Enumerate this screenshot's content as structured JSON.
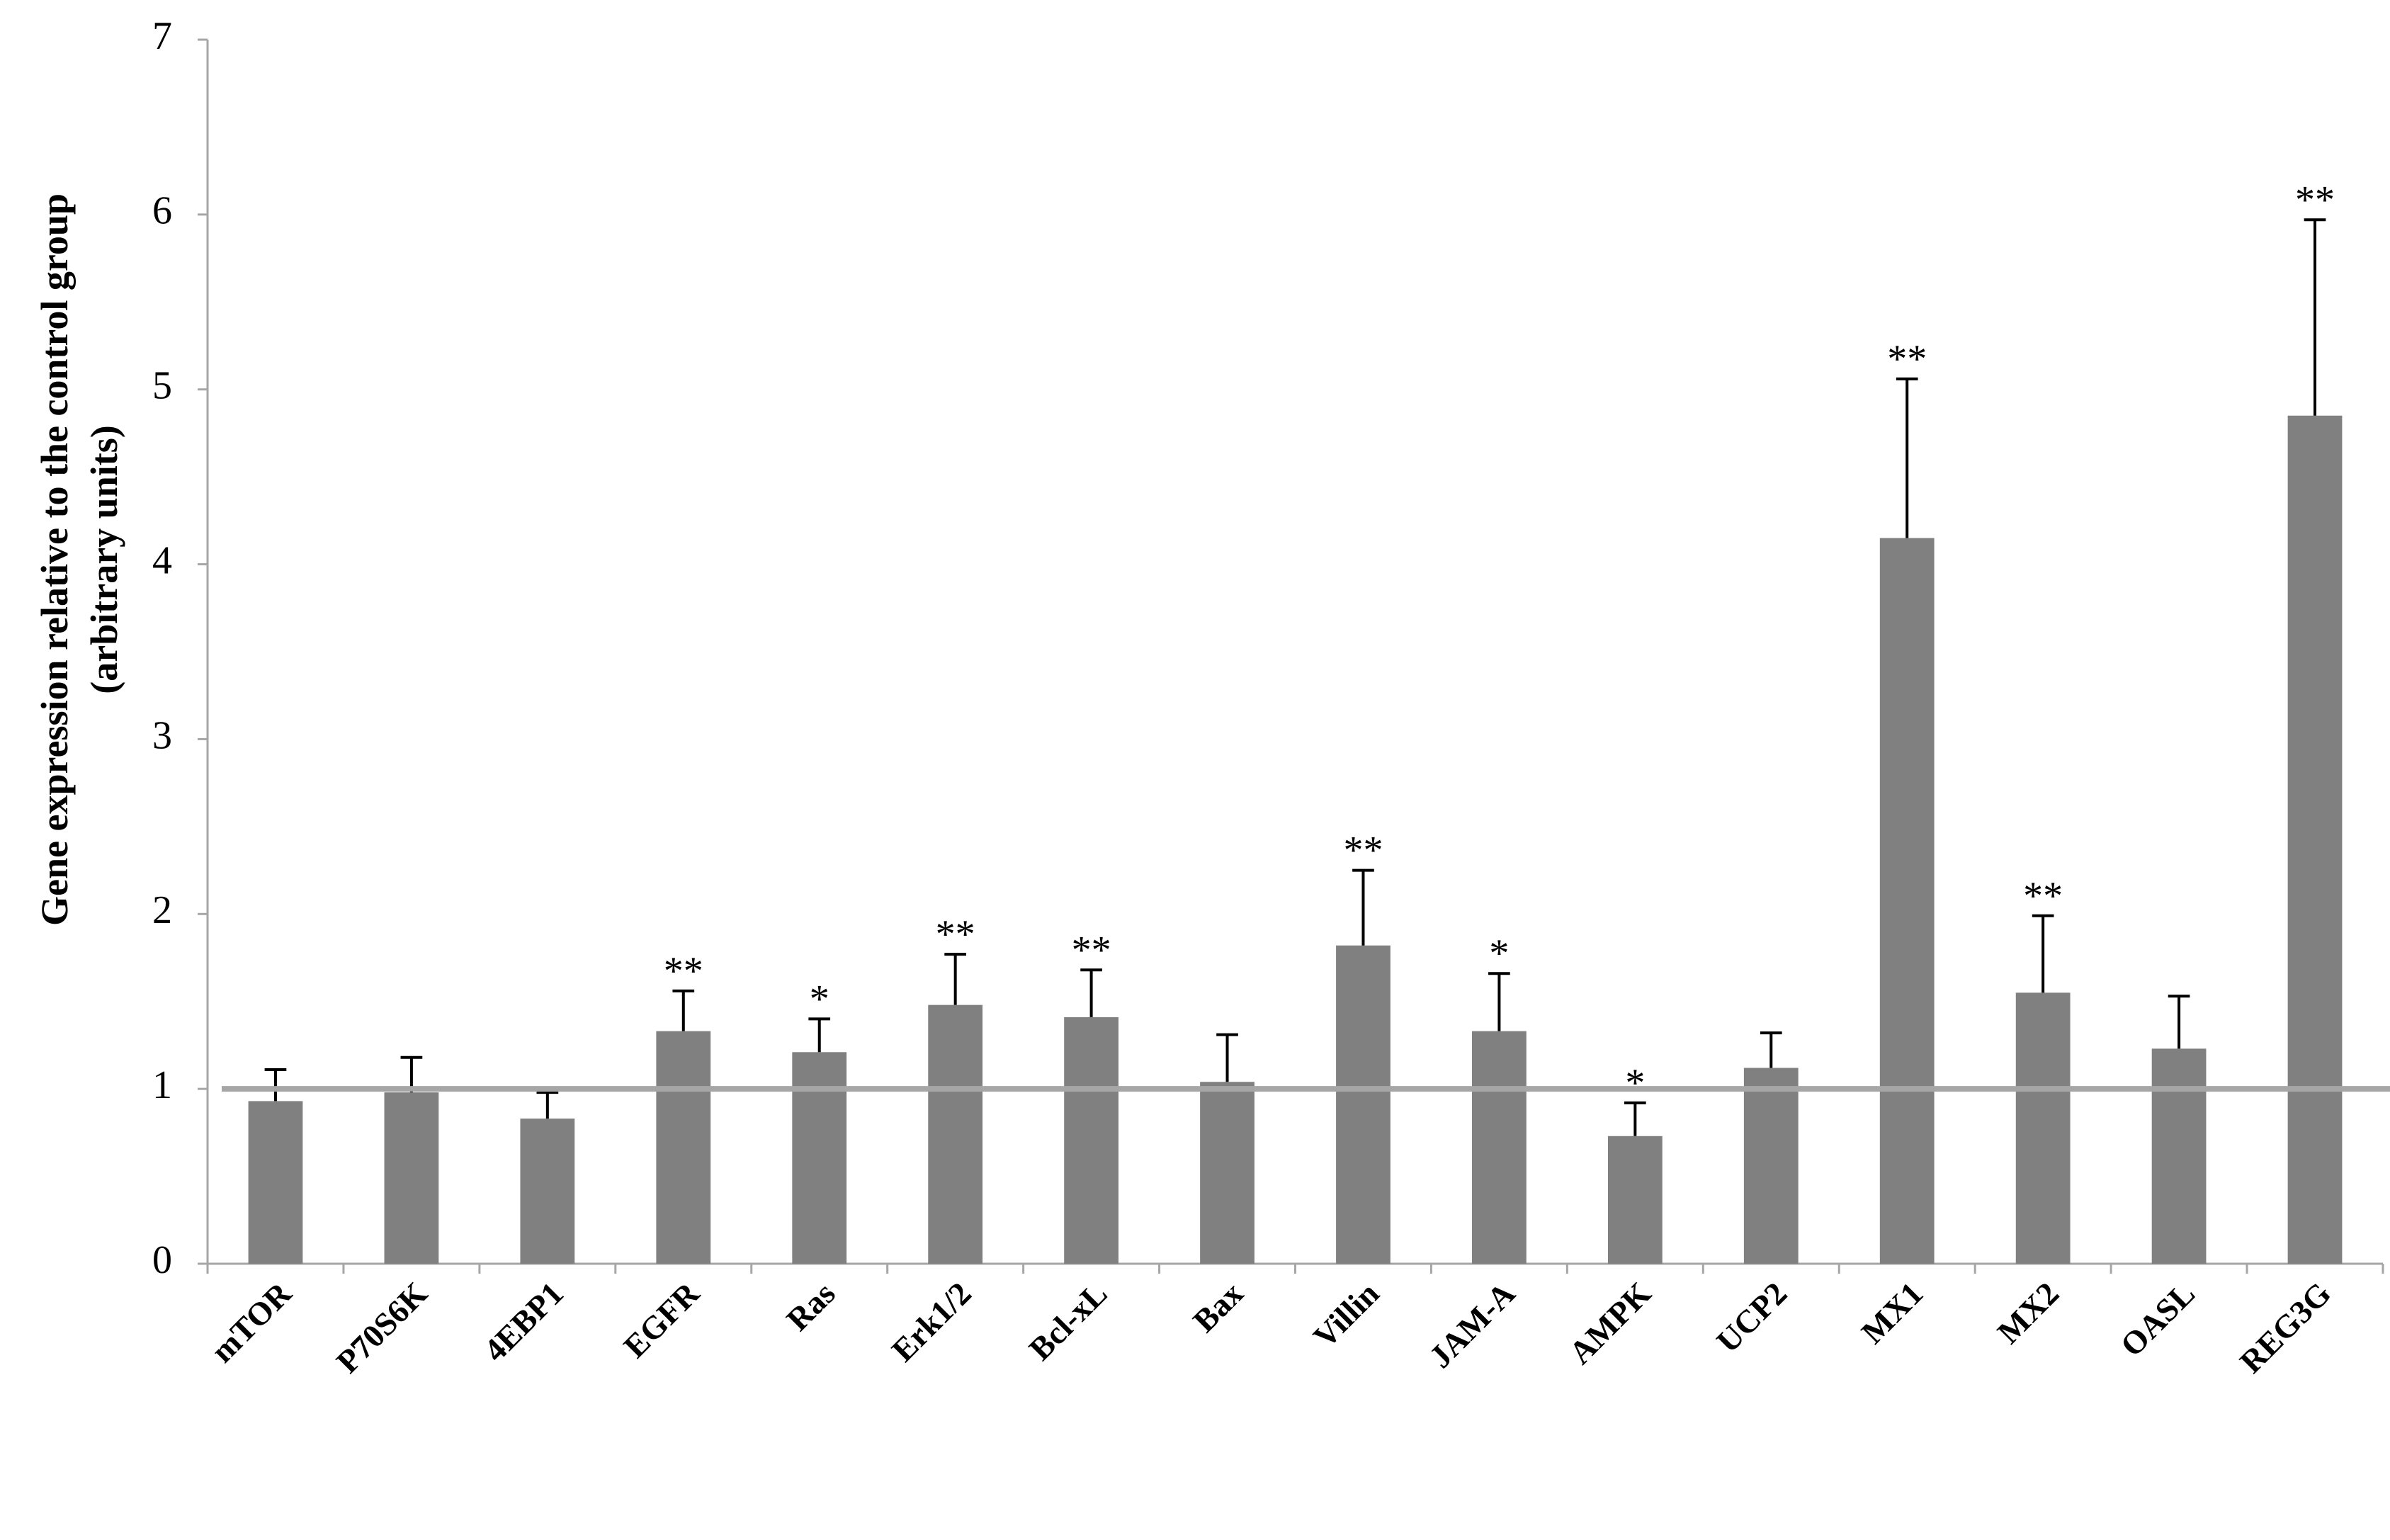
{
  "chart_data": {
    "type": "bar",
    "y_label": [
      "Gene expression relative to the control group",
      "(arbitrary units)"
    ],
    "categories": [
      "mTOR",
      "P70S6K",
      "4EBP1",
      "EGFR",
      "Ras",
      "Erk1/2",
      "Bcl-xL",
      "Bax",
      "Villin",
      "JAM-A",
      "AMPK",
      "UCP2",
      "MX1",
      "MX2",
      "OASL",
      "REG3G"
    ],
    "values": [
      0.93,
      0.98,
      0.83,
      1.33,
      1.21,
      1.48,
      1.41,
      1.04,
      1.82,
      1.33,
      0.73,
      1.12,
      4.15,
      1.55,
      1.23,
      4.85
    ],
    "errors": [
      0.18,
      0.2,
      0.15,
      0.23,
      0.19,
      0.29,
      0.27,
      0.27,
      0.43,
      0.33,
      0.19,
      0.2,
      0.91,
      0.44,
      0.3,
      1.12
    ],
    "annotations": [
      null,
      null,
      null,
      "**",
      "*",
      "**",
      "**",
      null,
      "**",
      "*",
      "*",
      null,
      "**",
      "**",
      null,
      "**"
    ],
    "color": "#808080",
    "error_color": "#000000",
    "reference_line": 1,
    "reference_color": "#a6a6a6",
    "ylim": [
      0,
      7
    ],
    "yticks": [
      0,
      1,
      2,
      3,
      4,
      5,
      6,
      7
    ],
    "grid": false
  }
}
